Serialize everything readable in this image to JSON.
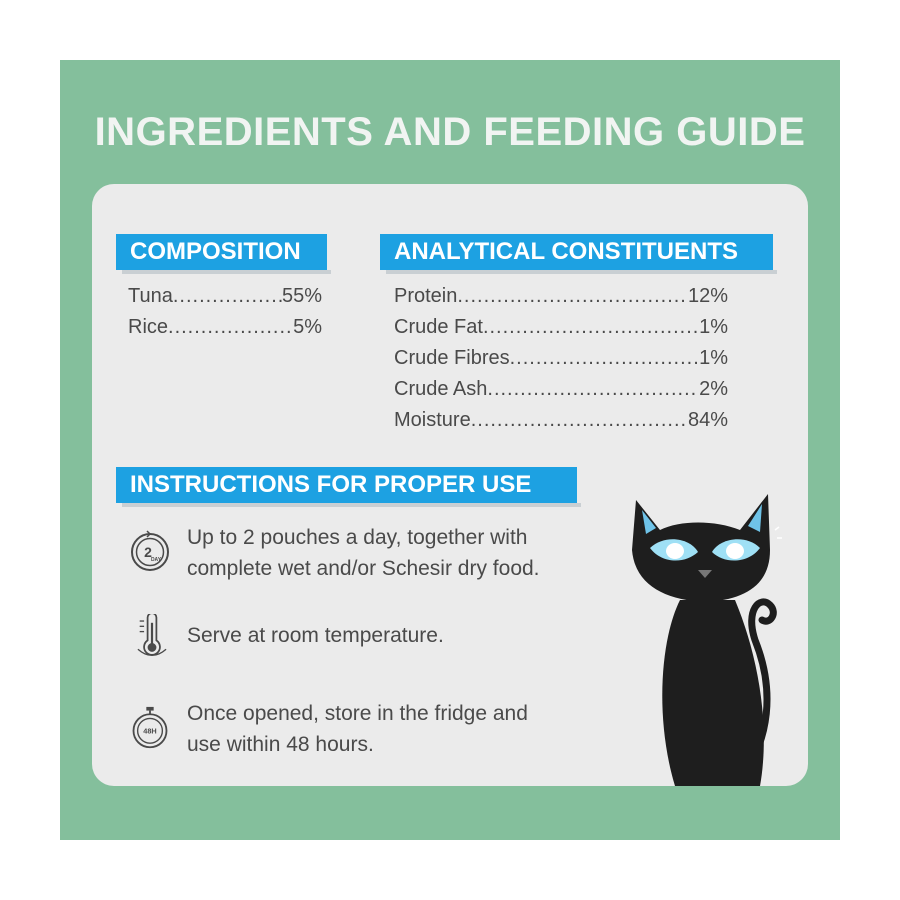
{
  "title": "INGREDIENTS AND FEEDING GUIDE",
  "composition": {
    "heading": "COMPOSITION",
    "items": [
      {
        "label": "Tuna",
        "value": "55%"
      },
      {
        "label": "Rice",
        "value": "5%"
      }
    ]
  },
  "analytical": {
    "heading": "ANALYTICAL CONSTITUENTS",
    "items": [
      {
        "label": "Protein",
        "value": "12%"
      },
      {
        "label": "Crude Fat",
        "value": "1%"
      },
      {
        "label": "Crude Fibres",
        "value": "1%"
      },
      {
        "label": "Crude Ash",
        "value": "2%"
      },
      {
        "label": "Moisture",
        "value": "84%"
      }
    ]
  },
  "instructions": {
    "heading": "INSTRUCTIONS FOR PROPER USE",
    "items": [
      {
        "icon": "two-per-day-icon",
        "line1": "Up to 2 pouches a day, together with",
        "line2": "complete wet and/or Schesir dry food."
      },
      {
        "icon": "thermometer-icon",
        "line1": "Serve at room temperature.",
        "line2": ""
      },
      {
        "icon": "stopwatch-48h-icon",
        "line1": "Once opened, store in the fridge and",
        "line2": "use within 48 hours."
      }
    ],
    "icon_text": {
      "day_number": "2",
      "day_label": "DAY",
      "hours": "48H"
    }
  },
  "colors": {
    "background": "#84bf9c",
    "card": "#ebebeb",
    "accent": "#1da1e2",
    "text": "#4a4a4a",
    "title": "#f1f4f2"
  }
}
